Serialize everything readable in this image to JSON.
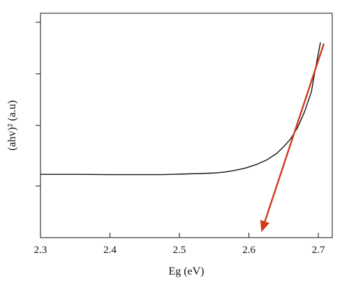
{
  "chart_data": {
    "type": "line",
    "title": "",
    "xlabel": "Eg (eV)",
    "ylabel": "(ahv)² (a.u)",
    "xlim": [
      2.3,
      2.72
    ],
    "ylim": [
      0,
      1.0
    ],
    "x_ticks": [
      "2.3",
      "2.4",
      "2.5",
      "2.6",
      "2.7"
    ],
    "x_tick_values": [
      2.3,
      2.4,
      2.5,
      2.6,
      2.7
    ],
    "y_tick_values": [
      0.23,
      0.5,
      0.73,
      0.96
    ],
    "y_ticks_labeled": false,
    "grid": false,
    "series": [
      {
        "color": "#111111",
        "points": [
          [
            2.3,
            0.282
          ],
          [
            2.35,
            0.282
          ],
          [
            2.4,
            0.281
          ],
          [
            2.45,
            0.281
          ],
          [
            2.475,
            0.281
          ],
          [
            2.5,
            0.283
          ],
          [
            2.525,
            0.285
          ],
          [
            2.55,
            0.288
          ],
          [
            2.565,
            0.292
          ],
          [
            2.58,
            0.3
          ],
          [
            2.595,
            0.31
          ],
          [
            2.61,
            0.325
          ],
          [
            2.625,
            0.345
          ],
          [
            2.64,
            0.375
          ],
          [
            2.65,
            0.405
          ],
          [
            2.66,
            0.44
          ],
          [
            2.67,
            0.49
          ],
          [
            2.68,
            0.56
          ],
          [
            2.69,
            0.65
          ],
          [
            2.695,
            0.74
          ],
          [
            2.703,
            0.87
          ]
        ]
      }
    ],
    "fit_arrow": {
      "color": "#d03a1c",
      "from": [
        2.708,
        0.865
      ],
      "to": [
        2.618,
        0.025
      ]
    }
  }
}
